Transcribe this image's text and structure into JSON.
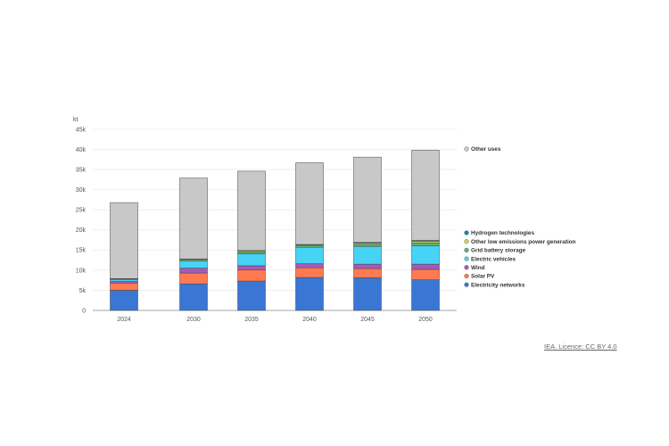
{
  "chart_data": {
    "type": "bar",
    "stacked": true,
    "title": "",
    "xlabel": "",
    "ylabel": "kt",
    "ylim": [
      0,
      45000
    ],
    "yticks": [
      0,
      5000,
      10000,
      15000,
      20000,
      25000,
      30000,
      35000,
      40000,
      45000
    ],
    "ytick_labels": [
      "0",
      "5k",
      "10k",
      "15k",
      "20k",
      "25k",
      "30k",
      "35k",
      "40k",
      "45k"
    ],
    "categories": [
      "2024",
      "2030",
      "2035",
      "2040",
      "2045",
      "2050"
    ],
    "grid": true,
    "series": [
      {
        "name": "Electricity networks",
        "color": "#3a76d4",
        "values": [
          5000,
          6600,
          7300,
          8200,
          8100,
          7600
        ]
      },
      {
        "name": "Solar PV",
        "color": "#ff7a50",
        "values": [
          1800,
          2700,
          2800,
          2400,
          2300,
          2600
        ]
      },
      {
        "name": "Wind",
        "color": "#a45bb8",
        "values": [
          400,
          1200,
          1000,
          1000,
          1100,
          1300
        ]
      },
      {
        "name": "Electric vehicles",
        "color": "#46d3f5",
        "values": [
          500,
          1800,
          3000,
          4100,
          4400,
          4600
        ]
      },
      {
        "name": "Grid battery storage",
        "color": "#5fb06b",
        "values": [
          100,
          400,
          400,
          500,
          500,
          700
        ]
      },
      {
        "name": "Other low emissions power generation",
        "color": "#c8d45a",
        "values": [
          0,
          0,
          300,
          0,
          300,
          400
        ]
      },
      {
        "name": "Hydrogen technologies",
        "color": "#138a95",
        "values": [
          100,
          100,
          100,
          200,
          200,
          200
        ]
      },
      {
        "name": "Other uses",
        "color": "#c8c8c8",
        "values": [
          18900,
          20100,
          19700,
          20300,
          21200,
          22400
        ]
      }
    ],
    "legend_upper": [
      "Other uses"
    ],
    "legend_lower": [
      "Hydrogen technologies",
      "Other low emissions power generation",
      "Grid battery storage",
      "Electric vehicles",
      "Wind",
      "Solar PV",
      "Electricity networks"
    ]
  },
  "credit": "IEA. Licence: CC BY 4.0"
}
